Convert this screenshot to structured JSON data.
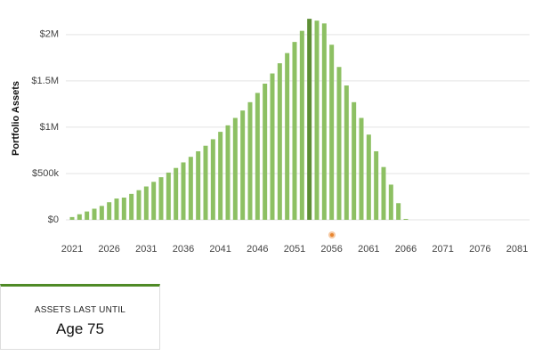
{
  "chart_data": {
    "type": "bar",
    "y_label": "Portfolio Assets",
    "categories": [
      "2021",
      null,
      null,
      null,
      null,
      "2026",
      null,
      null,
      null,
      null,
      "2031",
      null,
      null,
      null,
      null,
      "2036",
      null,
      null,
      null,
      null,
      "2041",
      null,
      null,
      null,
      null,
      "2046",
      null,
      null,
      null,
      null,
      "2051",
      null,
      null,
      null,
      null,
      "2056",
      null,
      null,
      null,
      null,
      "2061",
      null,
      null,
      null,
      null,
      "2066",
      null,
      null,
      null,
      null,
      "2071",
      null,
      null,
      null,
      null,
      "2076",
      null,
      null,
      null,
      null,
      "2081"
    ],
    "values": [
      30000,
      60000,
      90000,
      120000,
      150000,
      190000,
      230000,
      240000,
      280000,
      320000,
      360000,
      410000,
      460000,
      510000,
      560000,
      620000,
      680000,
      740000,
      800000,
      870000,
      950000,
      1020000,
      1100000,
      1180000,
      1270000,
      1370000,
      1470000,
      1580000,
      1690000,
      1800000,
      1920000,
      2040000,
      2170000,
      2150000,
      2120000,
      1890000,
      1650000,
      1450000,
      1270000,
      1100000,
      920000,
      740000,
      570000,
      380000,
      180000,
      10000,
      0,
      0,
      0,
      0,
      0,
      0,
      0,
      0,
      0,
      0,
      0,
      0,
      0,
      0,
      0
    ],
    "color": "#8dc063",
    "highlight_index": 32,
    "highlight_color": "#5e8f35",
    "ylim": [
      0,
      2200000
    ],
    "yticks": [
      {
        "value": 0,
        "label": "$0"
      },
      {
        "value": 500000,
        "label": "$500k"
      },
      {
        "value": 1000000,
        "label": "$1M"
      },
      {
        "value": 1500000,
        "label": "$1.5M"
      },
      {
        "value": 2000000,
        "label": "$2M"
      }
    ],
    "grid": true
  },
  "card": {
    "label": "ASSETS LAST UNTIL",
    "value": "Age 75"
  }
}
